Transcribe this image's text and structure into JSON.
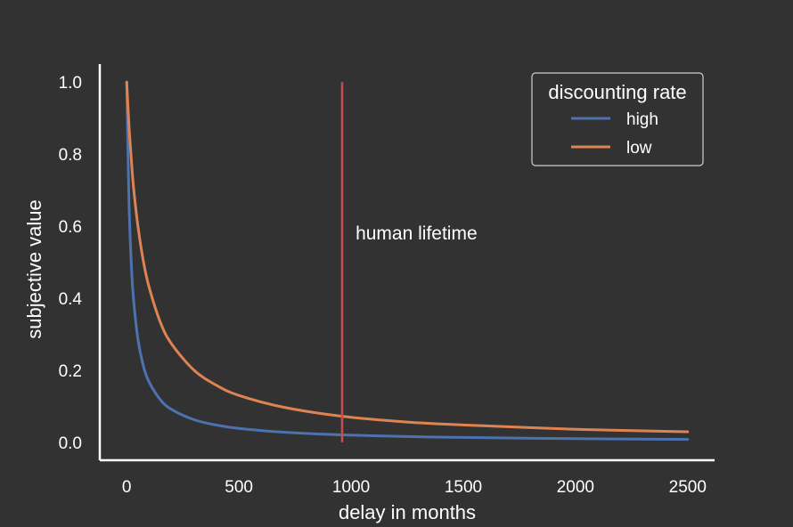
{
  "chart_data": {
    "type": "line",
    "title": "",
    "xlabel": "delay in months",
    "ylabel": "subjective value",
    "xlim": [
      -120,
      2620
    ],
    "ylim": [
      -0.05,
      1.05
    ],
    "xticks": [
      0,
      500,
      1000,
      1500,
      2000,
      2500
    ],
    "yticks": [
      0.0,
      0.2,
      0.4,
      0.6,
      0.8,
      1.0
    ],
    "xtick_labels": [
      "0",
      "500",
      "1000",
      "1500",
      "2000",
      "2500"
    ],
    "ytick_labels": [
      "0.0",
      "0.2",
      "0.4",
      "0.6",
      "0.8",
      "1.0"
    ],
    "grid": false,
    "legend": {
      "title": "discounting rate",
      "placement": "top-right"
    },
    "series": [
      {
        "name": "high",
        "color": "#4c72b0",
        "x": [
          0,
          10,
          20,
          30,
          50,
          75,
          100,
          150,
          200,
          300,
          400,
          500,
          700,
          960,
          1250,
          1500,
          2000,
          2500
        ],
        "y": [
          1.0,
          0.67,
          0.5,
          0.4,
          0.286,
          0.21,
          0.167,
          0.118,
          0.091,
          0.0625,
          0.0476,
          0.0385,
          0.0278,
          0.0204,
          0.0157,
          0.0132,
          0.0099,
          0.0079
        ]
      },
      {
        "name": "low",
        "color": "#dd8452",
        "x": [
          0,
          10,
          20,
          30,
          50,
          75,
          100,
          150,
          200,
          300,
          400,
          500,
          700,
          960,
          1250,
          1500,
          2000,
          2500
        ],
        "y": [
          1.0,
          0.88,
          0.79,
          0.71,
          0.6,
          0.5,
          0.43,
          0.333,
          0.273,
          0.2,
          0.158,
          0.13,
          0.097,
          0.072,
          0.056,
          0.048,
          0.036,
          0.029
        ]
      }
    ],
    "annotations": [
      {
        "type": "vline",
        "x": 960,
        "ymin": 0.0,
        "ymax": 1.0,
        "color": "#c44e52"
      },
      {
        "type": "text",
        "x": 1020,
        "y": 0.58,
        "text": "human lifetime"
      }
    ]
  }
}
